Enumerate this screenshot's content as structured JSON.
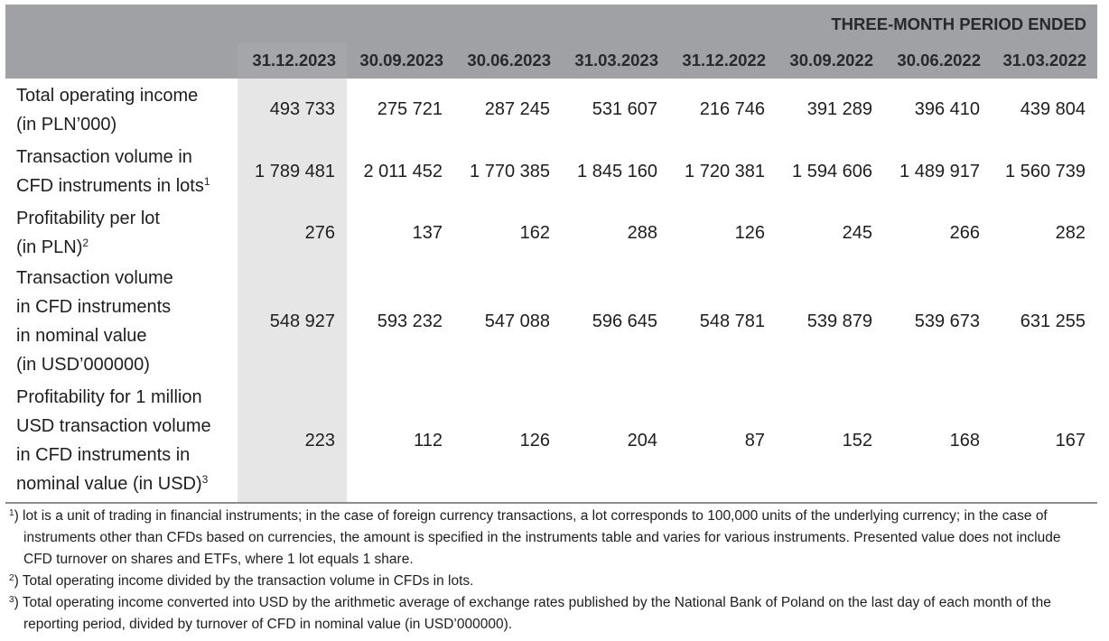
{
  "header": {
    "period_title": "THREE-MONTH PERIOD ENDED",
    "columns": [
      "31.12.2023",
      "30.09.2023",
      "30.06.2023",
      "31.03.2023",
      "31.12.2022",
      "30.09.2022",
      "30.06.2022",
      "31.03.2022"
    ]
  },
  "rows": [
    {
      "label_lines": [
        "Total operating income",
        "(in PLN’000)"
      ],
      "sup": "",
      "values": [
        "493 733",
        "275 721",
        "287 245",
        "531 607",
        "216 746",
        "391 289",
        "396 410",
        "439 804"
      ]
    },
    {
      "label_lines": [
        "Transaction volume in",
        "CFD instruments in lots"
      ],
      "sup": "1",
      "values": [
        "1 789 481",
        "2 011 452",
        "1 770 385",
        "1 845 160",
        "1 720 381",
        "1 594 606",
        "1 489 917",
        "1 560 739"
      ]
    },
    {
      "label_lines": [
        "Profitability per lot",
        "(in PLN)"
      ],
      "sup": "2",
      "values": [
        "276",
        "137",
        "162",
        "288",
        "126",
        "245",
        "266",
        "282"
      ]
    },
    {
      "label_lines": [
        "Transaction volume",
        "in CFD instruments",
        "in nominal value",
        "(in USD’000000)"
      ],
      "sup": "",
      "values": [
        "548 927",
        "593 232",
        "547 088",
        "596 645",
        "548 781",
        "539 879",
        "539 673",
        "631 255"
      ]
    },
    {
      "label_lines": [
        "Profitability for 1 million",
        "USD transaction volume",
        "in CFD instruments in",
        "nominal value (in USD)"
      ],
      "sup": "3",
      "values": [
        "223",
        "112",
        "126",
        "204",
        "87",
        "152",
        "168",
        "167"
      ]
    }
  ],
  "footnotes": [
    {
      "mark": "1",
      "text": ") lot is a unit of trading in financial instruments; in the case of foreign currency transactions, a lot corresponds to 100,000 units of the underlying currency; in the case of instruments other than CFDs based on currencies, the amount is specified in the instruments table and varies for various instruments. Presented value does not include CFD turnover on shares and ETFs, where 1 lot equals 1 share."
    },
    {
      "mark": "2",
      "text": ") Total operating income divided by the transaction volume in CFDs in lots."
    },
    {
      "mark": "3",
      "text": ") Total operating income converted into USD by the arithmetic average of exchange rates published by the National Bank of Poland on the last day of each month of the reporting period, divided by turnover of CFD in nominal value (in USD’000000)."
    }
  ]
}
